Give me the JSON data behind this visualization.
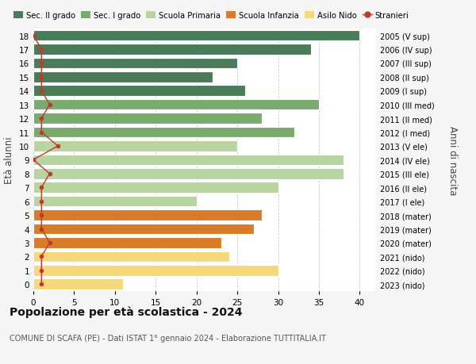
{
  "ages": [
    18,
    17,
    16,
    15,
    14,
    13,
    12,
    11,
    10,
    9,
    8,
    7,
    6,
    5,
    4,
    3,
    2,
    1,
    0
  ],
  "years": [
    "2005 (V sup)",
    "2006 (IV sup)",
    "2007 (III sup)",
    "2008 (II sup)",
    "2009 (I sup)",
    "2010 (III med)",
    "2011 (II med)",
    "2012 (I med)",
    "2013 (V ele)",
    "2014 (IV ele)",
    "2015 (III ele)",
    "2016 (II ele)",
    "2017 (I ele)",
    "2018 (mater)",
    "2019 (mater)",
    "2020 (mater)",
    "2021 (nido)",
    "2022 (nido)",
    "2023 (nido)"
  ],
  "bar_values": [
    40,
    34,
    25,
    22,
    26,
    35,
    28,
    32,
    25,
    38,
    38,
    30,
    20,
    28,
    27,
    23,
    24,
    30,
    11
  ],
  "bar_colors": [
    "#4a7c59",
    "#4a7c59",
    "#4a7c59",
    "#4a7c59",
    "#4a7c59",
    "#7aab6e",
    "#7aab6e",
    "#7aab6e",
    "#b8d4a0",
    "#b8d4a0",
    "#b8d4a0",
    "#b8d4a0",
    "#b8d4a0",
    "#d97c2a",
    "#d97c2a",
    "#d97c2a",
    "#f5d87a",
    "#f5d87a",
    "#f5d87a"
  ],
  "stranieri_values": [
    0,
    1,
    1,
    1,
    1,
    2,
    1,
    1,
    3,
    0,
    2,
    1,
    1,
    1,
    1,
    2,
    1,
    1,
    1
  ],
  "stranieri_color": "#c0392b",
  "legend_labels": [
    "Sec. II grado",
    "Sec. I grado",
    "Scuola Primaria",
    "Scuola Infanzia",
    "Asilo Nido",
    "Stranieri"
  ],
  "legend_colors": [
    "#4a7c59",
    "#7aab6e",
    "#b8d4a0",
    "#d97c2a",
    "#f5d87a",
    "#c0392b"
  ],
  "ylabel_left": "Età alunni",
  "ylabel_right": "Anni di nascita",
  "title": "Popolazione per età scolastica - 2024",
  "subtitle": "COMUNE DI SCAFA (PE) - Dati ISTAT 1° gennaio 2024 - Elaborazione TUTTITALIA.IT",
  "xlim": [
    0,
    42
  ],
  "xticks": [
    0,
    5,
    10,
    15,
    20,
    25,
    30,
    35,
    40
  ],
  "bg_color": "#f5f5f5",
  "bar_bg_color": "#ffffff",
  "grid_color": "#cccccc"
}
